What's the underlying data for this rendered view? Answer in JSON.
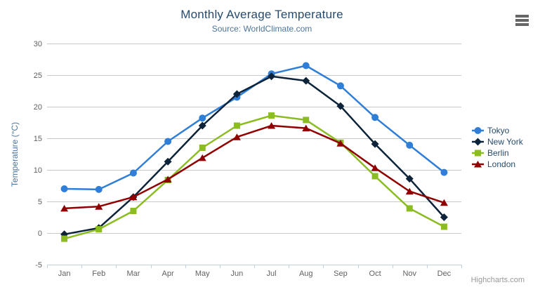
{
  "chart": {
    "credit": "Highcharts.com",
    "context_menu_icon": "hamburger-icon"
  },
  "chart_data": {
    "type": "line",
    "title": "Monthly Average Temperature",
    "subtitle": "Source: WorldClimate.com",
    "xlabel": "",
    "ylabel": "Temperature (°C)",
    "categories": [
      "Jan",
      "Feb",
      "Mar",
      "Apr",
      "May",
      "Jun",
      "Jul",
      "Aug",
      "Sep",
      "Oct",
      "Nov",
      "Dec"
    ],
    "ylim": [
      -5,
      30
    ],
    "yticks": [
      30,
      25,
      20,
      15,
      10,
      5,
      0,
      -5
    ],
    "grid": true,
    "legend_position": "right-middle",
    "series": [
      {
        "name": "Tokyo",
        "color": "#2f7ed8",
        "marker": "circle",
        "values": [
          7.0,
          6.9,
          9.5,
          14.5,
          18.2,
          21.5,
          25.2,
          26.5,
          23.3,
          18.3,
          13.9,
          9.6
        ]
      },
      {
        "name": "New York",
        "color": "#0d233a",
        "marker": "diamond",
        "values": [
          -0.2,
          0.8,
          5.7,
          11.3,
          17.0,
          22.0,
          24.8,
          24.1,
          20.1,
          14.1,
          8.6,
          2.5
        ]
      },
      {
        "name": "Berlin",
        "color": "#8bbc21",
        "marker": "square",
        "values": [
          -0.9,
          0.6,
          3.5,
          8.4,
          13.5,
          17.0,
          18.6,
          17.9,
          14.3,
          9.0,
          3.9,
          1.0
        ]
      },
      {
        "name": "London",
        "color": "#910000",
        "marker": "triangle",
        "values": [
          3.9,
          4.2,
          5.7,
          8.5,
          11.9,
          15.2,
          17.0,
          16.6,
          14.2,
          10.3,
          6.6,
          4.8
        ]
      }
    ]
  },
  "colors": {
    "background": "#ffffff",
    "title": "#274b6d",
    "subtitle": "#4d759e",
    "axis_title": "#4d759e",
    "axis_label": "#606060",
    "legend_text": "#274b6d",
    "gridline": "#c8c8c8",
    "axis_line": "#c0d0e0",
    "credit": "#999999",
    "menu_icon": "#666666"
  }
}
